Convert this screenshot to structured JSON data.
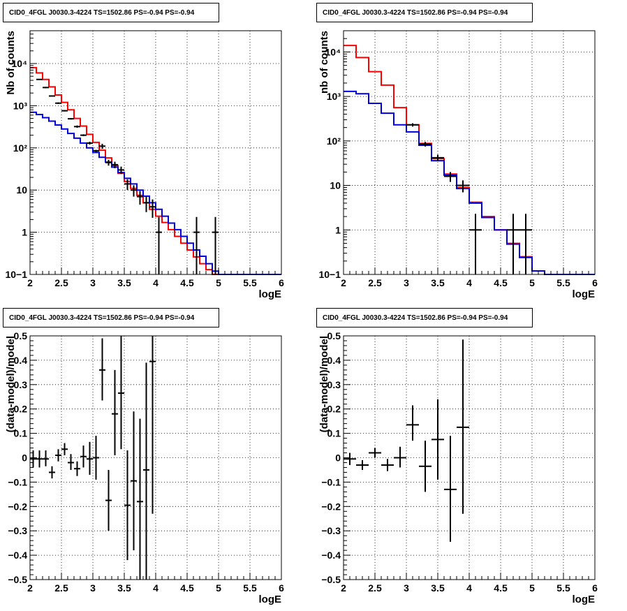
{
  "chart_data": [
    {
      "id": "tl",
      "type": "line",
      "title": "CID0_4FGL J0030.3-4224 TS=1502.86 PS=-0.94 PS=-0.94",
      "xlabel": "logE",
      "ylabel": "Nb of counts",
      "xlim": [
        2,
        6
      ],
      "ylim": [
        0.1,
        60000
      ],
      "yscale": "log",
      "grid": true,
      "xticks": [
        "2",
        "2.5",
        "3",
        "3.5",
        "4",
        "4.5",
        "5",
        "5.5",
        "6"
      ],
      "yticks": [
        {
          "v": 0.1,
          "t": "10−1"
        },
        {
          "v": 1,
          "t": "1"
        },
        {
          "v": 10,
          "t": "10"
        },
        {
          "v": 100,
          "t": "10²"
        },
        {
          "v": 1000,
          "t": "10³"
        },
        {
          "v": 10000,
          "t": "10⁴"
        }
      ],
      "binwidth": 0.1,
      "series": [
        {
          "color": "#ff0000",
          "x": [
            2.0,
            2.1,
            2.2,
            2.3,
            2.4,
            2.5,
            2.6,
            2.7,
            2.8,
            2.9,
            3.0,
            3.1,
            3.2,
            3.3,
            3.4,
            3.5,
            3.6,
            3.7,
            3.8,
            3.9,
            4.0,
            4.1,
            4.2,
            4.3,
            4.4,
            4.5,
            4.6,
            4.7,
            4.8,
            4.9,
            5.0,
            5.1,
            5.2,
            5.3,
            5.4,
            5.5,
            5.6,
            5.7,
            5.8,
            5.9
          ],
          "values": [
            8000,
            6000,
            4200,
            2800,
            1800,
            1200,
            800,
            500,
            330,
            210,
            135,
            88,
            58,
            38,
            25,
            16,
            11,
            7.5,
            5.0,
            3.5,
            2.4,
            1.7,
            1.15,
            0.8,
            0.55,
            0.38,
            0.26,
            0.18,
            0.13,
            0.1,
            0.1,
            0.1,
            0.1,
            0.1,
            0.1,
            0.1,
            0.1,
            0.1,
            0.1,
            0.1
          ]
        },
        {
          "color": "#0000dd",
          "x": [
            2.0,
            2.1,
            2.2,
            2.3,
            2.4,
            2.5,
            2.6,
            2.7,
            2.8,
            2.9,
            3.0,
            3.1,
            3.2,
            3.3,
            3.4,
            3.5,
            3.6,
            3.7,
            3.8,
            3.9,
            4.0,
            4.1,
            4.2,
            4.3,
            4.4,
            4.5,
            4.6,
            4.7,
            4.8,
            4.9,
            5.0,
            5.1,
            5.2,
            5.3,
            5.4,
            5.5,
            5.6,
            5.7,
            5.8,
            5.9
          ],
          "values": [
            700,
            620,
            520,
            430,
            350,
            280,
            220,
            170,
            130,
            100,
            78,
            60,
            46,
            35,
            26,
            19,
            14,
            10,
            7.2,
            5.0,
            3.5,
            2.4,
            1.65,
            1.15,
            0.8,
            0.55,
            0.38,
            0.27,
            0.18,
            0.12,
            0.1,
            0.1,
            0.1,
            0.1,
            0.1,
            0.1,
            0.1,
            0.1,
            0.1,
            0.1
          ]
        }
      ],
      "points": {
        "color": "#000000",
        "x": [
          2.15,
          2.25,
          2.35,
          2.45,
          2.55,
          2.65,
          2.75,
          2.85,
          2.95,
          3.05,
          3.15,
          3.25,
          3.35,
          3.45,
          3.55,
          3.65,
          3.75,
          3.85,
          3.95,
          4.05,
          4.65,
          4.95
        ],
        "y": [
          4200,
          2700,
          1700,
          1150,
          760,
          490,
          320,
          200,
          130,
          85,
          110,
          45,
          40,
          30,
          14,
          10,
          7,
          5,
          4,
          1,
          1,
          1
        ],
        "lo": [
          4100,
          2600,
          1650,
          1100,
          730,
          470,
          300,
          190,
          120,
          80,
          95,
          38,
          33,
          24,
          10,
          7,
          4.5,
          3,
          2.2,
          0.1,
          0.1,
          0.1
        ],
        "hi": [
          4300,
          2800,
          1750,
          1200,
          790,
          510,
          340,
          210,
          140,
          90,
          125,
          52,
          47,
          36,
          18,
          13,
          9.5,
          7,
          6,
          2.3,
          2.3,
          2.3
        ]
      }
    },
    {
      "id": "tr",
      "type": "line",
      "title": "CID0_4FGL J0030.3-4224 TS=1502.86 PS=-0.94 PS=-0.94",
      "xlabel": "logE",
      "ylabel": "nb of counts",
      "xlim": [
        2,
        6
      ],
      "ylim": [
        0.1,
        30000
      ],
      "yscale": "log",
      "grid": true,
      "xticks": [
        "2",
        "2.5",
        "3",
        "3.5",
        "4",
        "4.5",
        "5",
        "5.5",
        "6"
      ],
      "yticks": [
        {
          "v": 0.1,
          "t": "10−1"
        },
        {
          "v": 1,
          "t": "1"
        },
        {
          "v": 10,
          "t": "10"
        },
        {
          "v": 100,
          "t": "10²"
        },
        {
          "v": 1000,
          "t": "10³"
        },
        {
          "v": 10000,
          "t": "10⁴"
        }
      ],
      "binwidth": 0.2,
      "series": [
        {
          "color": "#ff0000",
          "x": [
            2.0,
            2.2,
            2.4,
            2.6,
            2.8,
            3.0,
            3.2,
            3.4,
            3.6,
            3.8,
            4.0,
            4.2,
            4.4,
            4.6,
            4.8,
            5.0,
            5.2,
            5.4,
            5.6,
            5.8
          ],
          "values": [
            14000,
            7500,
            3600,
            1800,
            560,
            230,
            88,
            40,
            18,
            9,
            4.2,
            2.0,
            1.0,
            0.5,
            0.25,
            0.12,
            0.1,
            0.1,
            0.1,
            0.1
          ]
        },
        {
          "color": "#0000dd",
          "x": [
            2.0,
            2.2,
            2.4,
            2.6,
            2.8,
            3.0,
            3.2,
            3.4,
            3.6,
            3.8,
            4.0,
            4.2,
            4.4,
            4.6,
            4.8,
            5.0,
            5.2,
            5.4,
            5.6,
            5.8
          ],
          "values": [
            1300,
            1150,
            700,
            420,
            230,
            160,
            80,
            36,
            17,
            8.5,
            4.0,
            1.9,
            1.0,
            0.48,
            0.24,
            0.12,
            0.1,
            0.1,
            0.1,
            0.1
          ]
        }
      ],
      "points": {
        "color": "#000000",
        "x": [
          3.1,
          3.3,
          3.5,
          3.7,
          3.9,
          4.1,
          4.7,
          4.9
        ],
        "y": [
          230,
          85,
          42,
          16,
          10,
          1,
          1,
          1
        ],
        "lo": [
          210,
          75,
          35,
          12,
          7,
          0.1,
          0.1,
          0.1
        ],
        "hi": [
          250,
          95,
          49,
          20,
          13,
          2.3,
          2.3,
          2.3
        ]
      }
    },
    {
      "id": "bl",
      "type": "scatter",
      "title": "CID0_4FGL J0030.3-4224 TS=1502.86 PS=-0.94 PS=-0.94",
      "xlabel": "logE",
      "ylabel": "(data-model)/model",
      "xlim": [
        2,
        6
      ],
      "ylim": [
        -0.5,
        0.5
      ],
      "yscale": "linear",
      "grid": true,
      "xticks": [
        "2",
        "2.5",
        "3",
        "3.5",
        "4",
        "4.5",
        "5",
        "5.5",
        "6"
      ],
      "yticks": [
        {
          "v": -0.5,
          "t": "−0.5"
        },
        {
          "v": -0.4,
          "t": "−0.4"
        },
        {
          "v": -0.3,
          "t": "−0.3"
        },
        {
          "v": -0.2,
          "t": "−0.2"
        },
        {
          "v": -0.1,
          "t": "−0.1"
        },
        {
          "v": 0,
          "t": "0"
        },
        {
          "v": 0.1,
          "t": "0.1"
        },
        {
          "v": 0.2,
          "t": "0.2"
        },
        {
          "v": 0.3,
          "t": "0.3"
        },
        {
          "v": 0.4,
          "t": "0.4"
        },
        {
          "v": 0.5,
          "t": "0.5"
        }
      ],
      "binwidth": 0.1,
      "points": {
        "color": "#000000",
        "x": [
          2.05,
          2.15,
          2.25,
          2.35,
          2.45,
          2.55,
          2.65,
          2.75,
          2.85,
          2.95,
          3.05,
          3.15,
          3.25,
          3.35,
          3.45,
          3.55,
          3.65,
          3.75,
          3.85,
          3.95
        ],
        "y": [
          -0.005,
          -0.005,
          -0.005,
          -0.06,
          0.01,
          0.035,
          -0.02,
          -0.045,
          0.005,
          -0.005,
          0.0,
          0.36,
          -0.175,
          0.18,
          0.265,
          -0.195,
          -0.095,
          -0.18,
          -0.05,
          0.395
        ],
        "lo": [
          -0.04,
          -0.04,
          -0.035,
          -0.085,
          -0.015,
          0.01,
          -0.05,
          -0.075,
          -0.04,
          -0.07,
          -0.09,
          0.235,
          -0.3,
          0.01,
          0.035,
          -0.42,
          -0.38,
          -0.5,
          -0.5,
          -0.23
        ],
        "hi": [
          0.03,
          0.03,
          0.03,
          -0.035,
          0.035,
          0.06,
          0.015,
          -0.015,
          0.05,
          0.065,
          0.09,
          0.49,
          -0.05,
          0.36,
          0.5,
          0.03,
          0.19,
          0.16,
          0.39,
          0.5
        ]
      }
    },
    {
      "id": "br",
      "type": "scatter",
      "title": "CID0_4FGL J0030.3-4224 TS=1502.86 PS=-0.94 PS=-0.94",
      "xlabel": "logE",
      "ylabel": "(data-model)/model",
      "xlim": [
        2,
        6
      ],
      "ylim": [
        -0.5,
        0.5
      ],
      "yscale": "linear",
      "grid": true,
      "xticks": [
        "2",
        "2.5",
        "3",
        "3.5",
        "4",
        "4.5",
        "5",
        "5.5",
        "6"
      ],
      "yticks": [
        {
          "v": -0.5,
          "t": "−0.5"
        },
        {
          "v": -0.4,
          "t": "−0.4"
        },
        {
          "v": -0.3,
          "t": "−0.3"
        },
        {
          "v": -0.2,
          "t": "−0.2"
        },
        {
          "v": -0.1,
          "t": "−0.1"
        },
        {
          "v": 0,
          "t": "0"
        },
        {
          "v": 0.1,
          "t": "0.1"
        },
        {
          "v": 0.2,
          "t": "0.2"
        },
        {
          "v": 0.3,
          "t": "0.3"
        },
        {
          "v": 0.4,
          "t": "0.4"
        },
        {
          "v": 0.5,
          "t": "0.5"
        }
      ],
      "binwidth": 0.2,
      "points": {
        "color": "#000000",
        "x": [
          2.1,
          2.3,
          2.5,
          2.7,
          2.9,
          3.1,
          3.3,
          3.5,
          3.7,
          3.9
        ],
        "y": [
          -0.005,
          -0.03,
          0.02,
          -0.03,
          0.0,
          0.135,
          -0.035,
          0.075,
          -0.13,
          0.125
        ],
        "lo": [
          -0.03,
          -0.05,
          0.0,
          -0.055,
          -0.04,
          0.07,
          -0.14,
          -0.09,
          -0.345,
          -0.23
        ],
        "hi": [
          0.02,
          -0.01,
          0.04,
          -0.005,
          0.045,
          0.215,
          0.07,
          0.24,
          0.09,
          0.485
        ]
      }
    }
  ]
}
